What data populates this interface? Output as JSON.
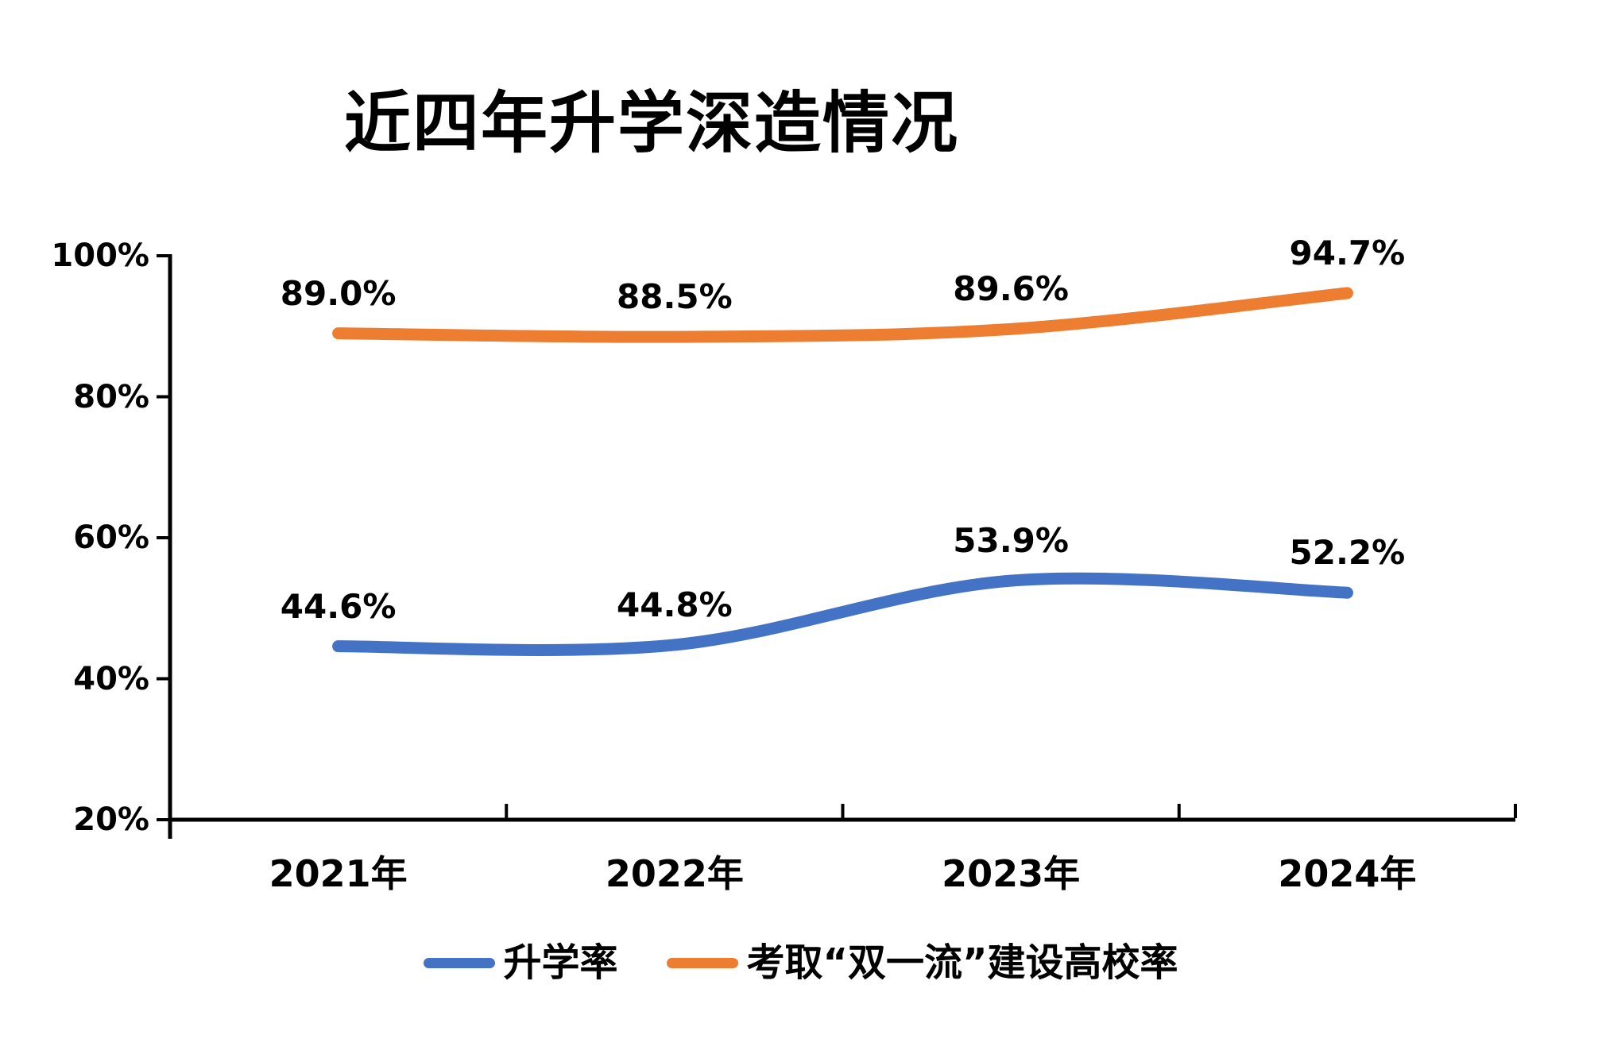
{
  "chart_data": {
    "type": "line",
    "title": "近四年升学深造情况",
    "categories": [
      "2021年",
      "2022年",
      "2023年",
      "2024年"
    ],
    "series": [
      {
        "name": "升学率",
        "color": "#4472C4",
        "values": [
          44.6,
          44.8,
          53.9,
          52.2
        ],
        "labels": [
          "44.6%",
          "44.8%",
          "53.9%",
          "52.2%"
        ]
      },
      {
        "name": "考取“双一流”建设高校率",
        "color": "#ED7D31",
        "values": [
          89.0,
          88.5,
          89.6,
          94.7
        ],
        "labels": [
          "89.0%",
          "88.5%",
          "89.6%",
          "94.7%"
        ]
      }
    ],
    "y_axis": {
      "min": 20,
      "max": 100,
      "ticks": [
        100,
        80,
        60,
        40,
        20
      ],
      "tick_labels": [
        "100%",
        "80%",
        "60%",
        "40%",
        "20%"
      ]
    },
    "line_style": "smooth",
    "grid": false,
    "legend_position": "bottom",
    "axis_color": "#000000",
    "text_color": "#000000",
    "background": "#FFFFFF"
  }
}
